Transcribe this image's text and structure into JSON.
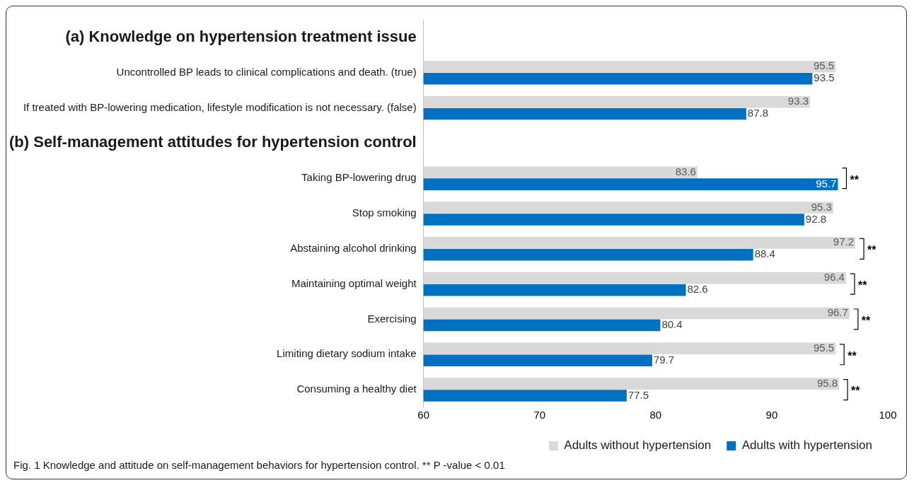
{
  "chart_data": {
    "type": "bar",
    "orientation": "horizontal",
    "categories": [
      null,
      "Uncontrolled BP leads to clinical complications and death. (true)",
      "If treated with BP-lowering medication, lifestyle modification is not necessary. (false)",
      null,
      "Taking BP-lowering drug",
      "Stop smoking",
      "Abstaining alcohol drinking",
      "Maintaining optimal weight",
      "Exercising",
      "Limiting dietary sodium intake",
      "Consuming a healthy diet"
    ],
    "series": [
      {
        "name": "Adults without hypertension",
        "color": "#d9d9d9",
        "values": [
          null,
          95.5,
          93.3,
          null,
          83.6,
          95.3,
          97.2,
          96.4,
          96.7,
          95.5,
          95.8
        ]
      },
      {
        "name": "Adults with hypertension",
        "color": "#0070c0",
        "values": [
          null,
          93.5,
          87.8,
          null,
          95.7,
          92.8,
          88.4,
          82.6,
          80.4,
          79.7,
          77.5
        ]
      }
    ],
    "xlim": [
      60,
      100
    ],
    "xticks": [
      60,
      70,
      80,
      90,
      100
    ],
    "grid": false,
    "legend": "bottom right",
    "data_labels": true,
    "annotations": [
      {
        "text": "**",
        "x": 95.7,
        "y": "Taking BP-lowering drug"
      },
      {
        "text": "**",
        "x": 97.2,
        "y": "Abstaining alcohol drinking"
      },
      {
        "text": "**",
        "x": 96.4,
        "y": "Maintaining optimal weight"
      },
      {
        "text": "**",
        "x": 96.7,
        "y": "Exercising"
      },
      {
        "text": "**",
        "x": 95.5,
        "y": "Limiting dietary sodium intake"
      },
      {
        "text": "**",
        "x": 95.8,
        "y": "Consuming a healthy diet"
      },
      "(a) Knowledge on hypertension treatment issue",
      "(b) Self-management attitudes for hypertension control",
      "Fig. 1 Knowledge and attitude on self-management behaviors for hypertension control. ** P -value < 0.01"
    ]
  }
}
